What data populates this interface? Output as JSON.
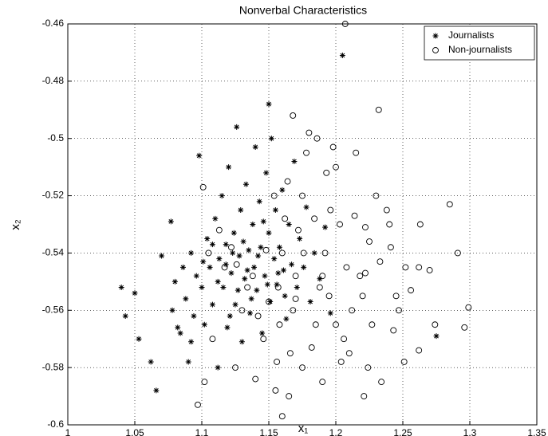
{
  "chart_data": {
    "type": "scatter",
    "title": "Nonverbal Characteristics",
    "xlabel": "x₁",
    "ylabel": "x₂",
    "xlim": [
      1,
      1.35
    ],
    "xticks": [
      1,
      1.05,
      1.1,
      1.15,
      1.2,
      1.25,
      1.3,
      1.35
    ],
    "ylim": [
      -0.6,
      -0.46
    ],
    "yticks": [
      -0.6,
      -0.58,
      -0.56,
      -0.54,
      -0.52,
      -0.5,
      -0.48,
      -0.46
    ],
    "grid": true,
    "legend": "upper right",
    "series": [
      {
        "name": "Journalists",
        "marker": "asterisk",
        "color": "#000000",
        "x": [
          1.205,
          1.15,
          1.04,
          1.043,
          1.05,
          1.053,
          1.062,
          1.066,
          1.07,
          1.077,
          1.078,
          1.08,
          1.082,
          1.084,
          1.086,
          1.088,
          1.09,
          1.092,
          1.094,
          1.096,
          1.098,
          1.1,
          1.102,
          1.104,
          1.106,
          1.108,
          1.11,
          1.112,
          1.113,
          1.115,
          1.116,
          1.118,
          1.119,
          1.12,
          1.122,
          1.124,
          1.125,
          1.126,
          1.128,
          1.129,
          1.13,
          1.132,
          1.133,
          1.135,
          1.136,
          1.138,
          1.139,
          1.14,
          1.141,
          1.143,
          1.144,
          1.145,
          1.147,
          1.148,
          1.15,
          1.151,
          1.152,
          1.154,
          1.155,
          1.156,
          1.158,
          1.16,
          1.161,
          1.163,
          1.165,
          1.167,
          1.169,
          1.171,
          1.173,
          1.176,
          1.178,
          1.181,
          1.184,
          1.188,
          1.192,
          1.196,
          1.112,
          1.118,
          1.127,
          1.134,
          1.142,
          1.149,
          1.123,
          1.108,
          1.101,
          1.131,
          1.146,
          1.157,
          1.121,
          1.137,
          1.162,
          1.092,
          1.275
        ],
        "values": [
          -0.471,
          -0.488,
          -0.552,
          -0.562,
          -0.554,
          -0.57,
          -0.578,
          -0.588,
          -0.541,
          -0.529,
          -0.56,
          -0.55,
          -0.566,
          -0.568,
          -0.545,
          -0.556,
          -0.578,
          -0.54,
          -0.562,
          -0.548,
          -0.506,
          -0.552,
          -0.565,
          -0.535,
          -0.545,
          -0.558,
          -0.528,
          -0.58,
          -0.542,
          -0.52,
          -0.552,
          -0.537,
          -0.566,
          -0.51,
          -0.547,
          -0.533,
          -0.558,
          -0.496,
          -0.541,
          -0.525,
          -0.571,
          -0.549,
          -0.516,
          -0.539,
          -0.561,
          -0.53,
          -0.545,
          -0.503,
          -0.553,
          -0.522,
          -0.538,
          -0.568,
          -0.548,
          -0.512,
          -0.533,
          -0.557,
          -0.5,
          -0.542,
          -0.525,
          -0.551,
          -0.538,
          -0.518,
          -0.546,
          -0.563,
          -0.53,
          -0.544,
          -0.508,
          -0.552,
          -0.535,
          -0.545,
          -0.524,
          -0.557,
          -0.54,
          -0.549,
          -0.531,
          -0.561,
          -0.55,
          -0.544,
          -0.553,
          -0.546,
          -0.541,
          -0.551,
          -0.54,
          -0.537,
          -0.543,
          -0.536,
          -0.529,
          -0.547,
          -0.562,
          -0.556,
          -0.555,
          -0.571,
          -0.569
        ]
      },
      {
        "name": "Non-journalists",
        "marker": "circle",
        "color": "#000000",
        "x": [
          1.207,
          1.232,
          1.168,
          1.285,
          1.291,
          1.299,
          1.296,
          1.16,
          1.097,
          1.221,
          1.101,
          1.102,
          1.125,
          1.14,
          1.155,
          1.165,
          1.175,
          1.19,
          1.204,
          1.234,
          1.251,
          1.262,
          1.274,
          1.262,
          1.27,
          1.256,
          1.263,
          1.245,
          1.24,
          1.238,
          1.23,
          1.225,
          1.218,
          1.212,
          1.206,
          1.2,
          1.196,
          1.192,
          1.188,
          1.185,
          1.182,
          1.178,
          1.175,
          1.172,
          1.17,
          1.168,
          1.166,
          1.164,
          1.162,
          1.16,
          1.158,
          1.156,
          1.154,
          1.15,
          1.146,
          1.142,
          1.138,
          1.134,
          1.13,
          1.126,
          1.122,
          1.117,
          1.113,
          1.108,
          1.105,
          1.186,
          1.193,
          1.203,
          1.208,
          1.214,
          1.22,
          1.227,
          1.233,
          1.241,
          1.247,
          1.252,
          1.215,
          1.198,
          1.18,
          1.21,
          1.224,
          1.243,
          1.222,
          1.222,
          1.2,
          1.195,
          1.19,
          1.184,
          1.176,
          1.17,
          1.157,
          1.148
        ],
        "values": [
          -0.46,
          -0.49,
          -0.492,
          -0.523,
          -0.54,
          -0.559,
          -0.566,
          -0.597,
          -0.593,
          -0.59,
          -0.517,
          -0.585,
          -0.58,
          -0.584,
          -0.588,
          -0.59,
          -0.58,
          -0.585,
          -0.578,
          -0.585,
          -0.578,
          -0.574,
          -0.565,
          -0.545,
          -0.546,
          -0.553,
          -0.53,
          -0.555,
          -0.53,
          -0.525,
          -0.52,
          -0.536,
          -0.548,
          -0.56,
          -0.57,
          -0.51,
          -0.525,
          -0.54,
          -0.552,
          -0.565,
          -0.573,
          -0.505,
          -0.52,
          -0.532,
          -0.548,
          -0.56,
          -0.575,
          -0.515,
          -0.528,
          -0.54,
          -0.565,
          -0.578,
          -0.52,
          -0.557,
          -0.57,
          -0.562,
          -0.548,
          -0.552,
          -0.56,
          -0.544,
          -0.538,
          -0.545,
          -0.532,
          -0.57,
          -0.54,
          -0.5,
          -0.512,
          -0.53,
          -0.545,
          -0.527,
          -0.555,
          -0.565,
          -0.543,
          -0.538,
          -0.56,
          -0.545,
          -0.505,
          -0.503,
          -0.498,
          -0.575,
          -0.58,
          -0.567,
          -0.547,
          -0.531,
          -0.565,
          -0.555,
          -0.548,
          -0.528,
          -0.54,
          -0.556,
          -0.552,
          -0.539
        ]
      }
    ]
  }
}
